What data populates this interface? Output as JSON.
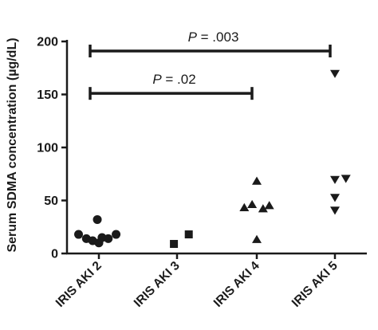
{
  "chart_data": {
    "type": "scatter",
    "ylabel": "Serum SDMA concentration (µg/dL)",
    "ylim": [
      0,
      200
    ],
    "y_ticks": [
      "0",
      "50",
      "100",
      "150",
      "200"
    ],
    "categories": [
      "IRIS AKI 2",
      "IRIS AKI 3",
      "IRIS AKI 4",
      "IRIS AKI 5"
    ],
    "series": [
      {
        "category": "IRIS AKI 2",
        "marker": "circle",
        "color": "#1a1a1a",
        "points": [
          {
            "offset": -0.26,
            "y": 18
          },
          {
            "offset": -0.16,
            "y": 14
          },
          {
            "offset": -0.08,
            "y": 12
          },
          {
            "offset": -0.02,
            "y": 32
          },
          {
            "offset": 0.04,
            "y": 15
          },
          {
            "offset": 0.0,
            "y": 10
          },
          {
            "offset": 0.12,
            "y": 14
          },
          {
            "offset": 0.22,
            "y": 18
          }
        ]
      },
      {
        "category": "IRIS AKI 3",
        "marker": "square",
        "color": "#1a1a1a",
        "points": [
          {
            "offset": -0.04,
            "y": 9
          },
          {
            "offset": 0.15,
            "y": 18
          }
        ]
      },
      {
        "category": "IRIS AKI 4",
        "marker": "triangle-up",
        "color": "#1a1a1a",
        "points": [
          {
            "offset": -0.16,
            "y": 43
          },
          {
            "offset": -0.06,
            "y": 46
          },
          {
            "offset": 0.0,
            "y": 68
          },
          {
            "offset": 0.08,
            "y": 42
          },
          {
            "offset": 0.16,
            "y": 45
          },
          {
            "offset": 0.0,
            "y": 13
          }
        ]
      },
      {
        "category": "IRIS AKI 5",
        "marker": "triangle-down",
        "color": "#1a1a1a",
        "points": [
          {
            "offset": 0.0,
            "y": 170
          },
          {
            "offset": 0.0,
            "y": 70
          },
          {
            "offset": 0.14,
            "y": 71
          },
          {
            "offset": 0.0,
            "y": 53
          },
          {
            "offset": 0.0,
            "y": 41
          }
        ]
      }
    ],
    "annotations": [
      {
        "from": "IRIS AKI 2",
        "to": "IRIS AKI 5",
        "y": 191,
        "p_symbol": "P",
        "p_value": " = .003"
      },
      {
        "from": "IRIS AKI 2",
        "to": "IRIS AKI 4",
        "y": 151,
        "p_symbol": "P",
        "p_value": " = .02"
      }
    ]
  }
}
